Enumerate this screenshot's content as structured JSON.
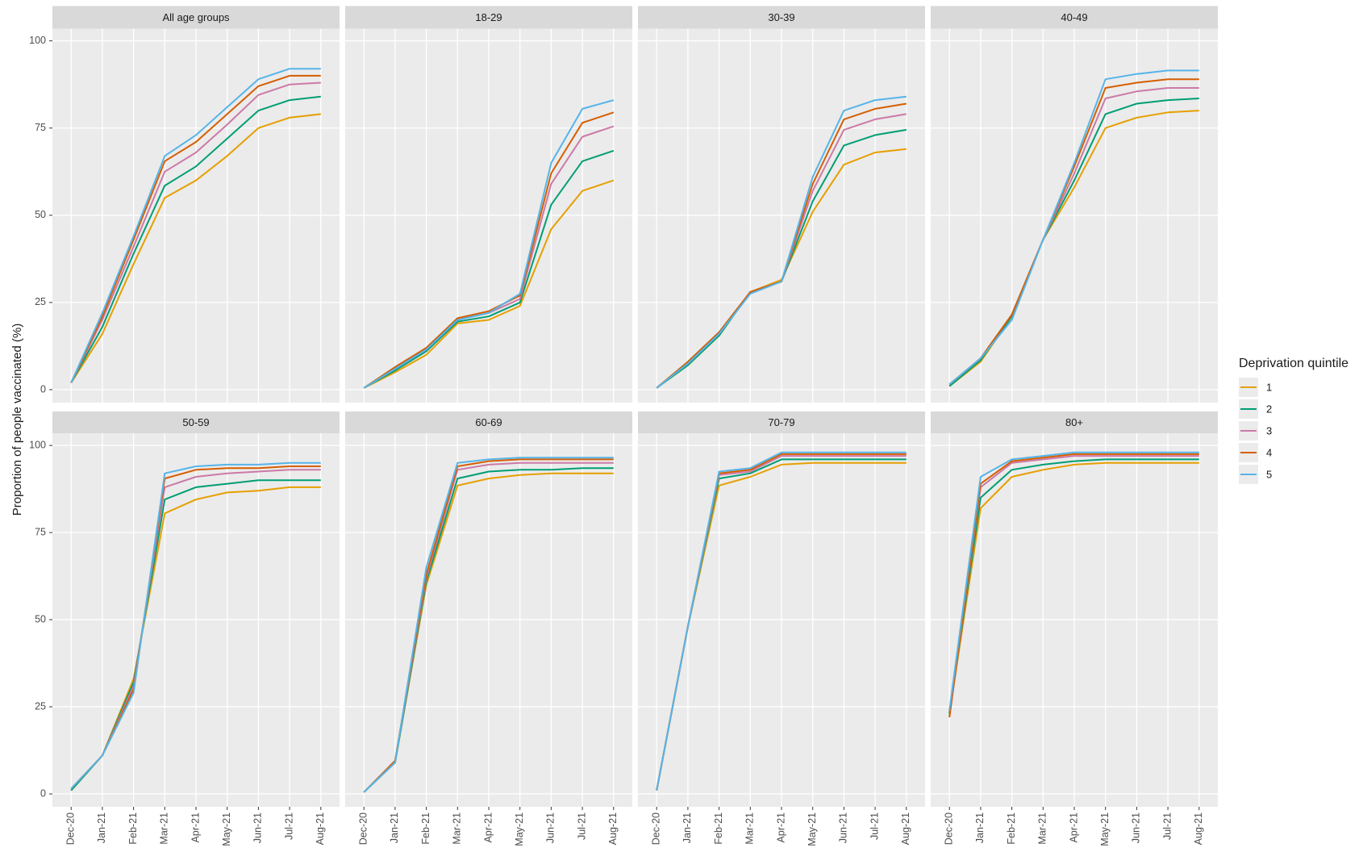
{
  "chart_data": {
    "type": "line",
    "ylabel": "Proportion of people vaccinated (%)",
    "legend_title": "Deprivation quintile",
    "categories": [
      "Dec-20",
      "Jan-21",
      "Feb-21",
      "Mar-21",
      "Apr-21",
      "May-21",
      "Jun-21",
      "Jul-21",
      "Aug-21"
    ],
    "ylim": [
      -3.7,
      103.5
    ],
    "yticks": [
      0,
      25,
      50,
      75,
      100
    ],
    "grid": true,
    "series": [
      {
        "name": "1",
        "color": "#E69F00"
      },
      {
        "name": "2",
        "color": "#009E73"
      },
      {
        "name": "3",
        "color": "#CC79A7"
      },
      {
        "name": "4",
        "color": "#D55E00"
      },
      {
        "name": "5",
        "color": "#56B4E9"
      }
    ],
    "panels": [
      {
        "title": "All age groups",
        "values": [
          [
            2,
            16,
            36,
            55,
            60,
            67,
            75,
            78,
            79
          ],
          [
            2,
            18,
            39,
            58.5,
            64,
            72,
            80,
            83,
            84
          ],
          [
            2,
            20,
            41,
            62.5,
            68,
            76,
            84.5,
            87.5,
            88
          ],
          [
            2,
            21,
            43,
            65.5,
            71,
            79,
            87,
            90,
            90
          ],
          [
            2,
            22,
            44,
            67,
            73,
            81,
            89,
            92,
            92
          ]
        ]
      },
      {
        "title": "18-29",
        "values": [
          [
            0.5,
            5,
            10,
            19,
            20,
            24,
            46,
            57,
            60
          ],
          [
            0.5,
            5.5,
            11,
            19.5,
            21,
            25,
            53,
            65.5,
            68.5
          ],
          [
            0.5,
            6,
            11.5,
            20,
            22,
            26,
            59,
            72.5,
            75.5
          ],
          [
            0.5,
            6.5,
            12,
            20.5,
            22.5,
            27,
            62,
            76.5,
            79.5
          ],
          [
            0.5,
            6,
            11.5,
            20,
            22,
            27.5,
            65,
            80.5,
            83
          ]
        ]
      },
      {
        "title": "30-39",
        "values": [
          [
            0.5,
            7,
            15.5,
            28,
            31.5,
            51,
            64.5,
            68,
            69
          ],
          [
            0.5,
            7,
            15.5,
            28,
            31,
            54,
            70,
            73,
            74.5
          ],
          [
            0.5,
            7.5,
            16,
            28,
            31,
            57,
            74.5,
            77.5,
            79
          ],
          [
            0.5,
            8,
            16.5,
            28,
            31,
            59,
            77.5,
            80.5,
            82
          ],
          [
            0.5,
            7.5,
            16,
            27.5,
            31,
            61,
            80,
            83,
            84
          ]
        ]
      },
      {
        "title": "40-49",
        "values": [
          [
            1,
            8,
            21,
            43,
            58,
            75,
            78,
            79.5,
            80
          ],
          [
            1,
            8.5,
            21,
            43,
            60,
            79,
            82,
            83,
            83.5
          ],
          [
            1.5,
            9,
            21.5,
            43,
            62,
            83.5,
            85.5,
            86.5,
            86.5
          ],
          [
            1.5,
            9,
            21.5,
            43,
            64,
            86.5,
            88,
            89,
            89
          ],
          [
            1.5,
            9,
            20,
            43,
            65,
            89,
            90.5,
            91.5,
            91.5
          ]
        ]
      },
      {
        "title": "50-59",
        "values": [
          [
            1,
            11,
            33,
            80.5,
            84.5,
            86.5,
            87,
            88,
            88
          ],
          [
            1,
            11,
            32,
            84.5,
            88,
            89,
            90,
            90,
            90
          ],
          [
            1.5,
            11,
            31,
            88,
            91,
            92,
            92.5,
            93,
            93
          ],
          [
            1.5,
            11,
            30,
            90.5,
            93,
            93.5,
            93.5,
            94,
            94
          ],
          [
            1.5,
            11,
            29,
            92,
            94,
            94.5,
            94.5,
            95,
            95
          ]
        ]
      },
      {
        "title": "60-69",
        "values": [
          [
            0.5,
            9,
            60,
            88.5,
            90.5,
            91.5,
            92,
            92,
            92
          ],
          [
            0.5,
            9,
            61,
            90.5,
            92.5,
            93,
            93,
            93.5,
            93.5
          ],
          [
            0.5,
            9.5,
            62,
            93,
            94.5,
            95,
            95,
            95,
            95
          ],
          [
            0.5,
            9.5,
            63,
            94,
            95.5,
            96,
            96,
            96,
            96
          ],
          [
            0.5,
            9,
            65,
            95,
            96,
            96.5,
            96.5,
            96.5,
            96.5
          ]
        ]
      },
      {
        "title": "70-79",
        "values": [
          [
            1,
            48,
            88.5,
            91,
            94.5,
            95,
            95,
            95,
            95
          ],
          [
            1,
            48,
            90.5,
            92,
            96,
            96,
            96,
            96,
            96
          ],
          [
            1,
            48,
            91.5,
            92.5,
            97,
            97,
            97,
            97,
            97
          ],
          [
            1,
            48,
            92,
            93,
            97.5,
            97.5,
            97.5,
            97.5,
            97.5
          ],
          [
            1,
            48,
            92.5,
            93.5,
            98,
            98,
            98,
            98,
            98
          ]
        ]
      },
      {
        "title": "80+",
        "values": [
          [
            23,
            82,
            91,
            93,
            94.5,
            95,
            95,
            95,
            95
          ],
          [
            23,
            85,
            93,
            94.5,
            95.5,
            96,
            96,
            96,
            96
          ],
          [
            22,
            88,
            95,
            96,
            97,
            97,
            97,
            97,
            97
          ],
          [
            22,
            89,
            95.5,
            96.5,
            97.5,
            97.5,
            97.5,
            97.5,
            97.5
          ],
          [
            24,
            91,
            96,
            97,
            98,
            98,
            98,
            98,
            98
          ]
        ]
      }
    ]
  }
}
